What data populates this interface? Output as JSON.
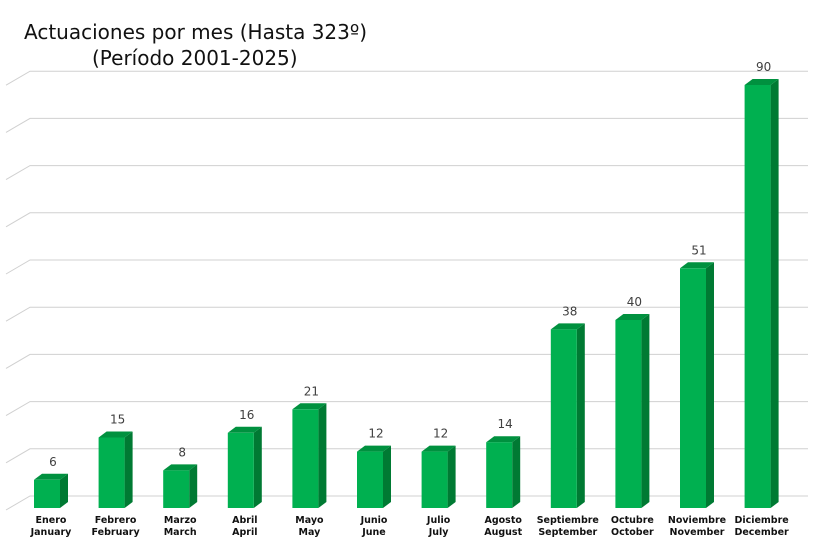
{
  "chart_data": {
    "type": "bar",
    "title_line1": "Actuaciones por mes (Hasta 323º)",
    "title_line2": "(Período 2001-2025)",
    "categories": [
      {
        "es": "Enero",
        "en": "January"
      },
      {
        "es": "Febrero",
        "en": "February"
      },
      {
        "es": "Marzo",
        "en": "March"
      },
      {
        "es": "Abril",
        "en": "April"
      },
      {
        "es": "Mayo",
        "en": "May"
      },
      {
        "es": "Junio",
        "en": "June"
      },
      {
        "es": "Julio",
        "en": "July"
      },
      {
        "es": "Agosto",
        "en": "August"
      },
      {
        "es": "Septiembre",
        "en": "September"
      },
      {
        "es": "Octubre",
        "en": "October"
      },
      {
        "es": "Noviembre",
        "en": "November"
      },
      {
        "es": "Diciembre",
        "en": "December"
      }
    ],
    "values": [
      6,
      15,
      8,
      16,
      21,
      12,
      12,
      14,
      38,
      40,
      51,
      90
    ],
    "ylim": [
      0,
      90
    ],
    "grid": true,
    "legend": "none",
    "colors": {
      "bar_front": "#00b050",
      "bar_side": "#007a33",
      "bar_top": "#00913f",
      "grid": "#d0d0d0"
    }
  }
}
